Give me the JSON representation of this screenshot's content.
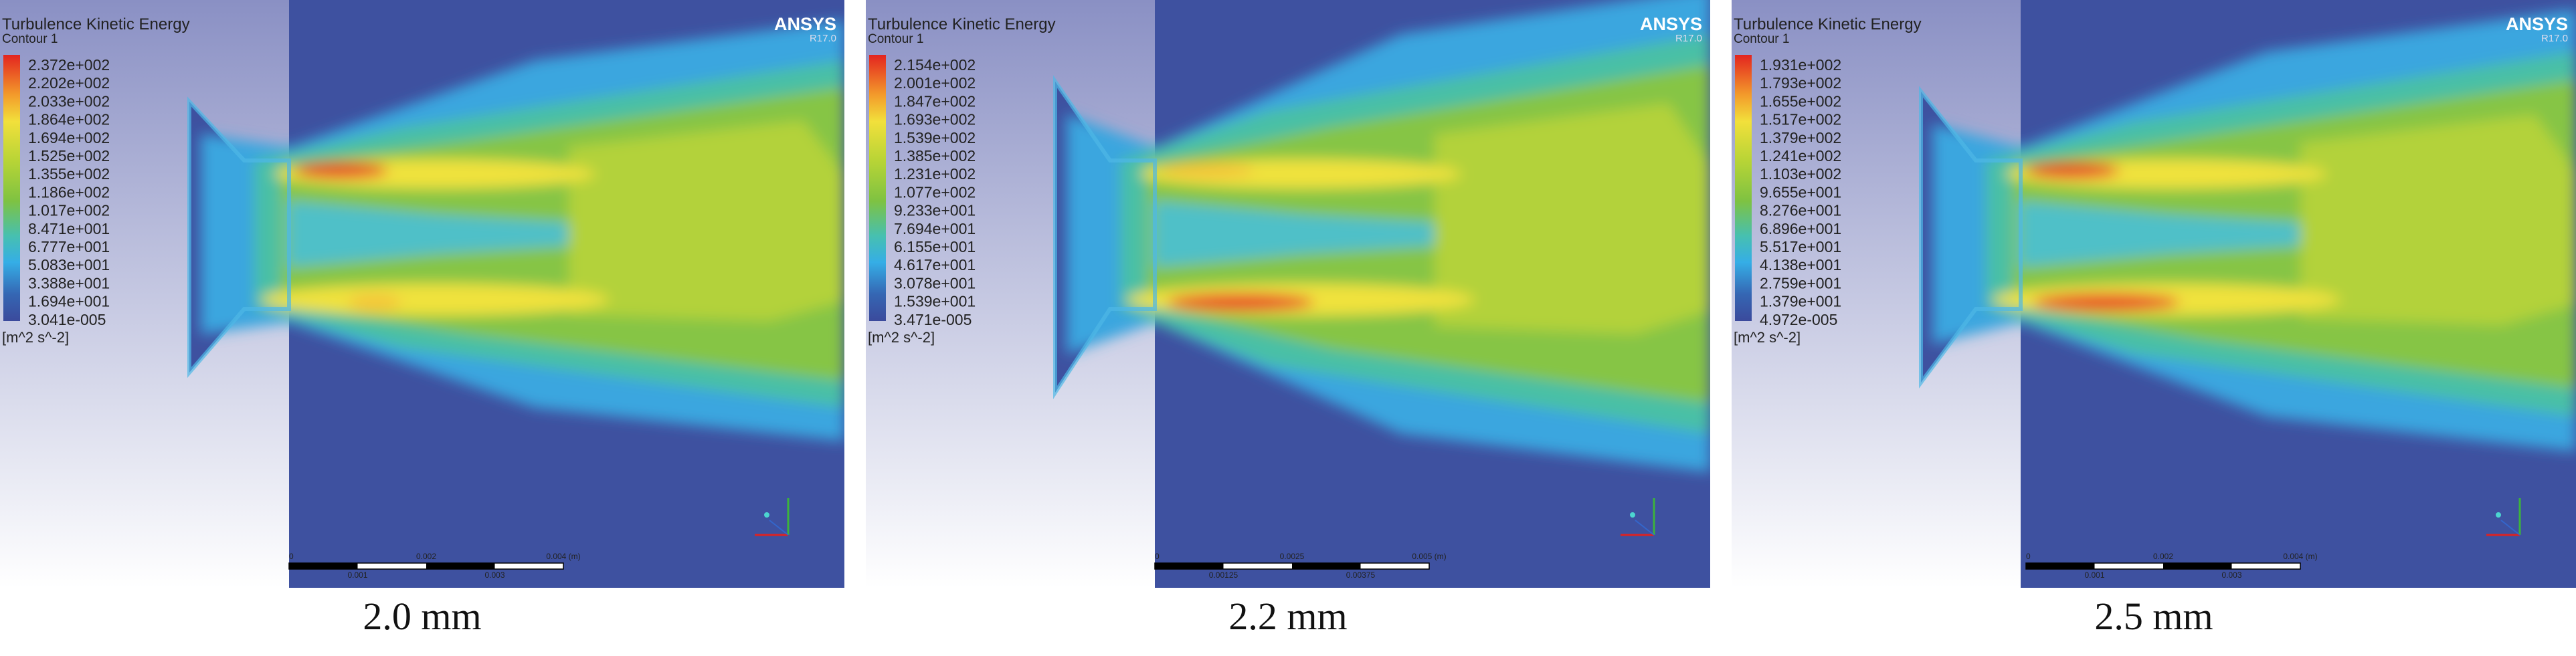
{
  "panels": [
    {
      "title": "Turbulence Kinetic Energy",
      "subtitle": "Contour 1",
      "legend": [
        "2.372e+002",
        "2.202e+002",
        "2.033e+002",
        "1.864e+002",
        "1.694e+002",
        "1.525e+002",
        "1.355e+002",
        "1.186e+002",
        "1.017e+002",
        "8.471e+001",
        "6.777e+001",
        "5.083e+001",
        "3.388e+001",
        "1.694e+001",
        "3.041e-005"
      ],
      "unit": "[m^2 s^-2]",
      "brand": "ANSYS",
      "version": "R17.0",
      "scale_top": [
        "0",
        "0.002",
        "0.004 (m)"
      ],
      "scale_bottom": [
        "0.001",
        "0.003"
      ],
      "caption": "2.0 mm"
    },
    {
      "title": "Turbulence Kinetic Energy",
      "subtitle": "Contour 1",
      "legend": [
        "2.154e+002",
        "2.001e+002",
        "1.847e+002",
        "1.693e+002",
        "1.539e+002",
        "1.385e+002",
        "1.231e+002",
        "1.077e+002",
        "9.233e+001",
        "7.694e+001",
        "6.155e+001",
        "4.617e+001",
        "3.078e+001",
        "1.539e+001",
        "3.471e-005"
      ],
      "unit": "[m^2 s^-2]",
      "brand": "ANSYS",
      "version": "R17.0",
      "scale_top": [
        "0",
        "0.0025",
        "0.005 (m)"
      ],
      "scale_bottom": [
        "0.00125",
        "0.00375"
      ],
      "caption": "2.2 mm"
    },
    {
      "title": "Turbulence Kinetic Energy",
      "subtitle": "Contour 1",
      "legend": [
        "1.931e+002",
        "1.793e+002",
        "1.655e+002",
        "1.517e+002",
        "1.379e+002",
        "1.241e+002",
        "1.103e+002",
        "9.655e+001",
        "8.276e+001",
        "6.896e+001",
        "5.517e+001",
        "4.138e+001",
        "2.759e+001",
        "1.379e+001",
        "4.972e-005"
      ],
      "unit": "[m^2 s^-2]",
      "brand": "ANSYS",
      "version": "R17.0",
      "scale_top": [
        "0",
        "0.002",
        "0.004 (m)"
      ],
      "scale_bottom": [
        "0.001",
        "0.003"
      ],
      "caption": "2.5 mm"
    }
  ]
}
